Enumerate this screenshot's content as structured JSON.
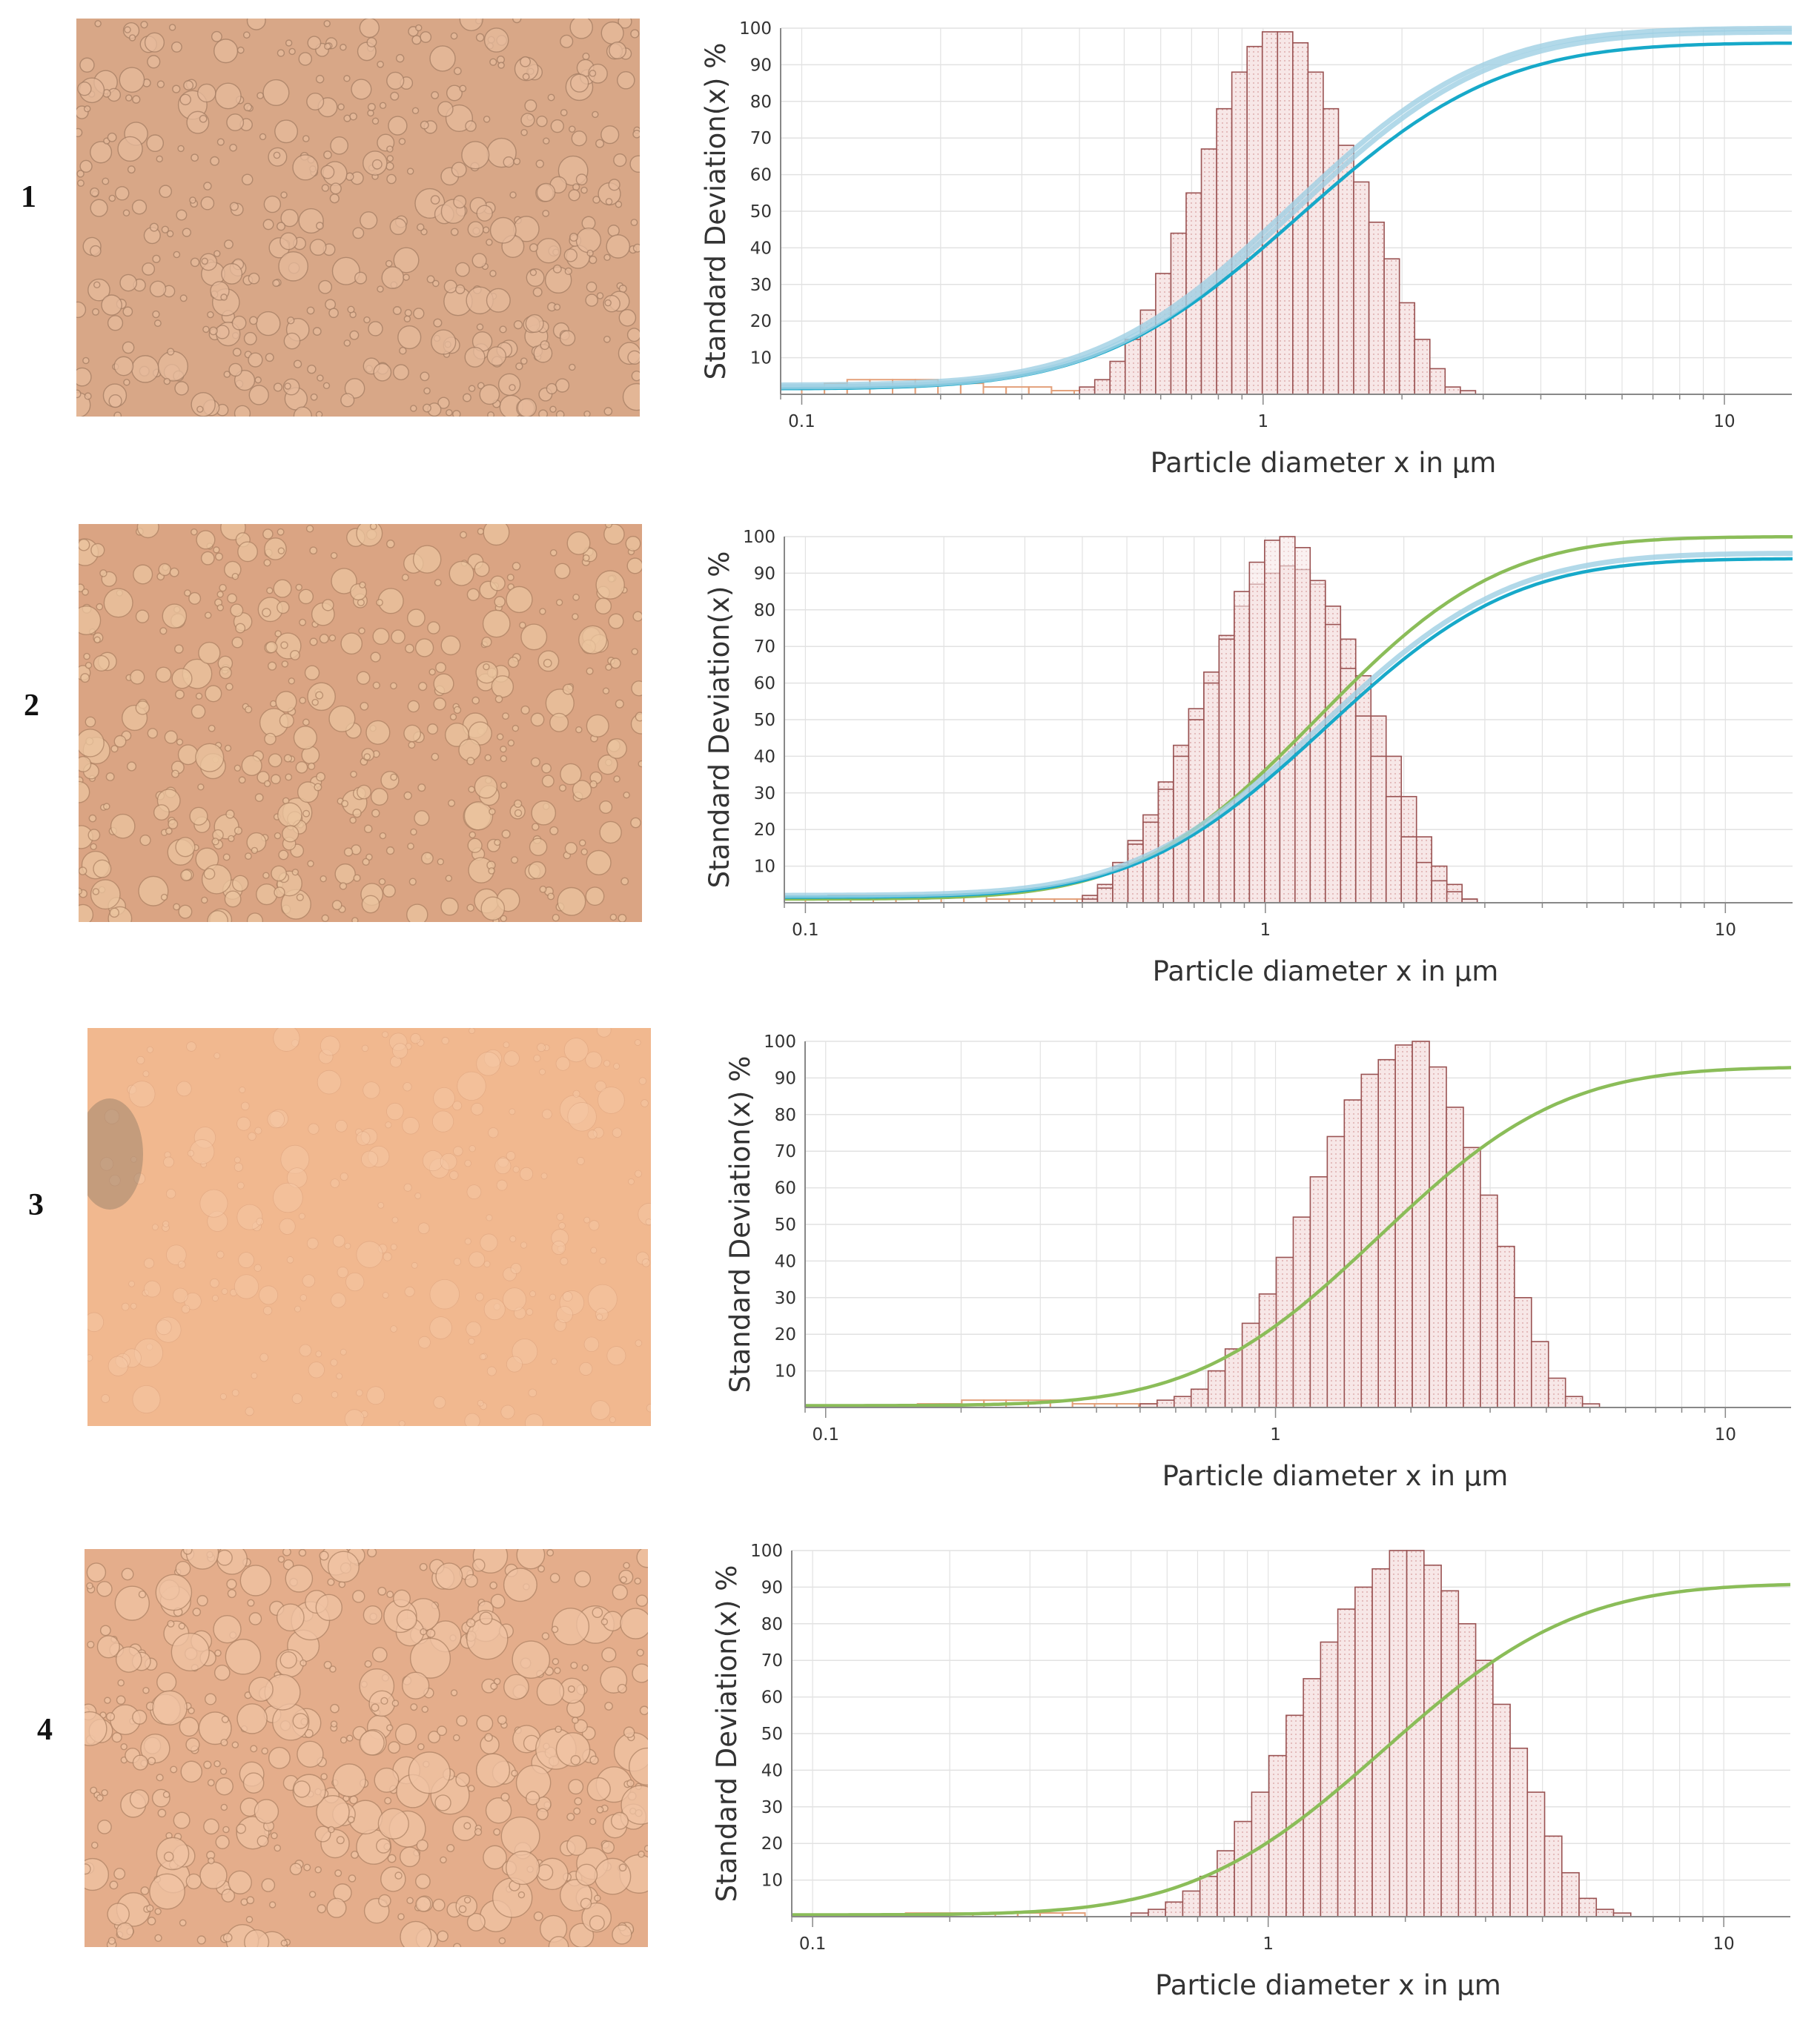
{
  "row_labels": [
    "1",
    "2",
    "3",
    "4"
  ],
  "micrographs": [
    {
      "name": "micrograph-1",
      "bg": "#d8a787",
      "droplet": "#e7bb9c",
      "edge": "#a67f65"
    },
    {
      "name": "micrograph-2",
      "bg": "#daa483",
      "droplet": "#ecc59f",
      "edge": "#b08566"
    },
    {
      "name": "micrograph-3",
      "bg": "#f1b88f",
      "droplet": "#f6c9a6",
      "edge": "#d9a07d"
    },
    {
      "name": "micrograph-4",
      "bg": "#e4ad8b",
      "droplet": "#f1c4a4",
      "edge": "#b08567"
    }
  ],
  "colors": {
    "bar_fill": "#f7e7e7",
    "bar_stroke": "#9a5353",
    "grid": "#e2e2e2",
    "cyan": "#17a9c9",
    "light_blue": "#9fcfe3",
    "green": "#8bbd59",
    "orange": "#e3a07a"
  },
  "chart_data": [
    {
      "type": "bar",
      "title": "",
      "xlabel": "Particle diameter x in µm",
      "ylabel": "Standard Deviation(x) %",
      "xscale": "log",
      "xlim": [
        0.09,
        14
      ],
      "ylim": [
        0,
        100
      ],
      "xticks": [
        {
          "value": 0.1,
          "label": "0.1"
        },
        {
          "value": 1,
          "label": "1"
        },
        {
          "value": 10,
          "label": "10"
        }
      ],
      "yticks": [
        10,
        20,
        30,
        40,
        50,
        60,
        70,
        80,
        90,
        100
      ],
      "grid": true,
      "bins": {
        "start": 0.4,
        "ratio": 1.079,
        "values": [
          2,
          4,
          9,
          15,
          23,
          33,
          44,
          55,
          67,
          78,
          88,
          95,
          99,
          99,
          96,
          88,
          78,
          68,
          58,
          47,
          37,
          25,
          15,
          7,
          2,
          1
        ]
      },
      "low_bars": {
        "start": 0.1,
        "ratio": 1.12,
        "values": [
          2,
          3,
          4,
          4,
          4,
          4,
          3,
          3,
          2,
          2,
          2,
          1,
          1,
          1,
          1,
          1,
          1
        ]
      },
      "series": [
        {
          "name": "cumulative-cyan",
          "color": "cyan",
          "x0": 1.2,
          "s": 0.34,
          "max": 96,
          "base": 1.5
        },
        {
          "name": "cumulative-light-blue",
          "color": "light_blue",
          "x0": 1.15,
          "s": 0.33,
          "max": 100,
          "base": 2.5
        },
        {
          "name": "cumulative-light-blue-2",
          "color": "light_blue",
          "x0": 1.18,
          "s": 0.33,
          "max": 99,
          "base": 2
        }
      ]
    },
    {
      "type": "bar",
      "title": "",
      "xlabel": "Particle diameter x in µm",
      "ylabel": "Standard Deviation(x) %",
      "xscale": "log",
      "xlim": [
        0.09,
        14
      ],
      "ylim": [
        0,
        100
      ],
      "xticks": [
        {
          "value": 0.1,
          "label": "0.1"
        },
        {
          "value": 1,
          "label": "1"
        },
        {
          "value": 10,
          "label": "10"
        }
      ],
      "yticks": [
        10,
        20,
        30,
        40,
        50,
        60,
        70,
        80,
        90,
        100
      ],
      "grid": true,
      "bins": {
        "start": 0.4,
        "ratio": 1.079,
        "values": [
          2,
          5,
          11,
          17,
          24,
          33,
          43,
          53,
          63,
          73,
          81,
          87,
          90,
          92,
          91,
          87,
          81,
          72,
          62,
          51,
          40,
          29,
          18,
          10,
          5,
          1
        ]
      },
      "bins_overlay": {
        "start": 0.4,
        "ratio": 1.079,
        "values": [
          1,
          4,
          10,
          16,
          22,
          31,
          40,
          50,
          60,
          72,
          85,
          93,
          99,
          100,
          97,
          88,
          76,
          64,
          51,
          40,
          29,
          18,
          11,
          6,
          3,
          1
        ]
      },
      "low_bars": {
        "start": 0.1,
        "ratio": 1.12,
        "values": [
          1,
          2,
          2,
          2,
          2,
          2,
          2,
          2,
          1,
          1,
          1,
          1,
          1,
          1
        ]
      },
      "series": [
        {
          "name": "cumulative-green",
          "color": "green",
          "x0": 1.3,
          "s": 0.31,
          "max": 100,
          "base": 1
        },
        {
          "name": "cumulative-cyan",
          "color": "cyan",
          "x0": 1.35,
          "s": 0.32,
          "max": 94,
          "base": 1.5
        },
        {
          "name": "cumulative-light-blue",
          "color": "light_blue",
          "x0": 1.33,
          "s": 0.32,
          "max": 95.5,
          "base": 2
        }
      ]
    },
    {
      "type": "bar",
      "title": "",
      "xlabel": "Particle diameter x in µm",
      "ylabel": "Standard Deviation(x) %",
      "xscale": "log",
      "xlim": [
        0.09,
        14
      ],
      "ylim": [
        0,
        100
      ],
      "xticks": [
        {
          "value": 0.1,
          "label": "0.1"
        },
        {
          "value": 1,
          "label": "1"
        },
        {
          "value": 10,
          "label": "10"
        }
      ],
      "yticks": [
        10,
        20,
        30,
        40,
        50,
        60,
        70,
        80,
        90,
        100
      ],
      "grid": true,
      "bins": {
        "start": 0.5,
        "ratio": 1.091,
        "values": [
          1,
          2,
          3,
          5,
          10,
          16,
          23,
          31,
          41,
          52,
          63,
          74,
          84,
          91,
          95,
          99,
          100,
          93,
          82,
          71,
          58,
          44,
          30,
          18,
          8,
          3,
          1
        ]
      },
      "low_bars": {
        "start": 0.16,
        "ratio": 1.12,
        "values": [
          1,
          1,
          2,
          2,
          2,
          2,
          2,
          1,
          1,
          1,
          1
        ]
      },
      "series": [
        {
          "name": "cumulative-green",
          "color": "green",
          "x0": 1.7,
          "s": 0.32,
          "max": 93,
          "base": 0.5
        }
      ]
    },
    {
      "type": "bar",
      "title": "",
      "xlabel": "Particle diameter x in µm",
      "ylabel": "Standard Deviation(x) %",
      "xscale": "log",
      "xlim": [
        0.09,
        14
      ],
      "ylim": [
        0,
        100
      ],
      "xticks": [
        {
          "value": 0.1,
          "label": "0.1"
        },
        {
          "value": 1,
          "label": "1"
        },
        {
          "value": 10,
          "label": "10"
        }
      ],
      "yticks": [
        10,
        20,
        30,
        40,
        50,
        60,
        70,
        80,
        90,
        100
      ],
      "grid": true,
      "bins": {
        "start": 0.5,
        "ratio": 1.091,
        "values": [
          1,
          2,
          4,
          7,
          11,
          18,
          26,
          34,
          44,
          55,
          65,
          75,
          84,
          90,
          95,
          100,
          100,
          96,
          89,
          80,
          70,
          58,
          46,
          34,
          22,
          12,
          5,
          2,
          1
        ]
      },
      "low_bars": {
        "start": 0.16,
        "ratio": 1.12,
        "values": [
          1,
          1,
          1,
          1,
          1,
          1,
          1,
          1
        ]
      },
      "series": [
        {
          "name": "cumulative-green",
          "color": "green",
          "x0": 1.8,
          "s": 0.33,
          "max": 91,
          "base": 0.5
        }
      ]
    }
  ]
}
